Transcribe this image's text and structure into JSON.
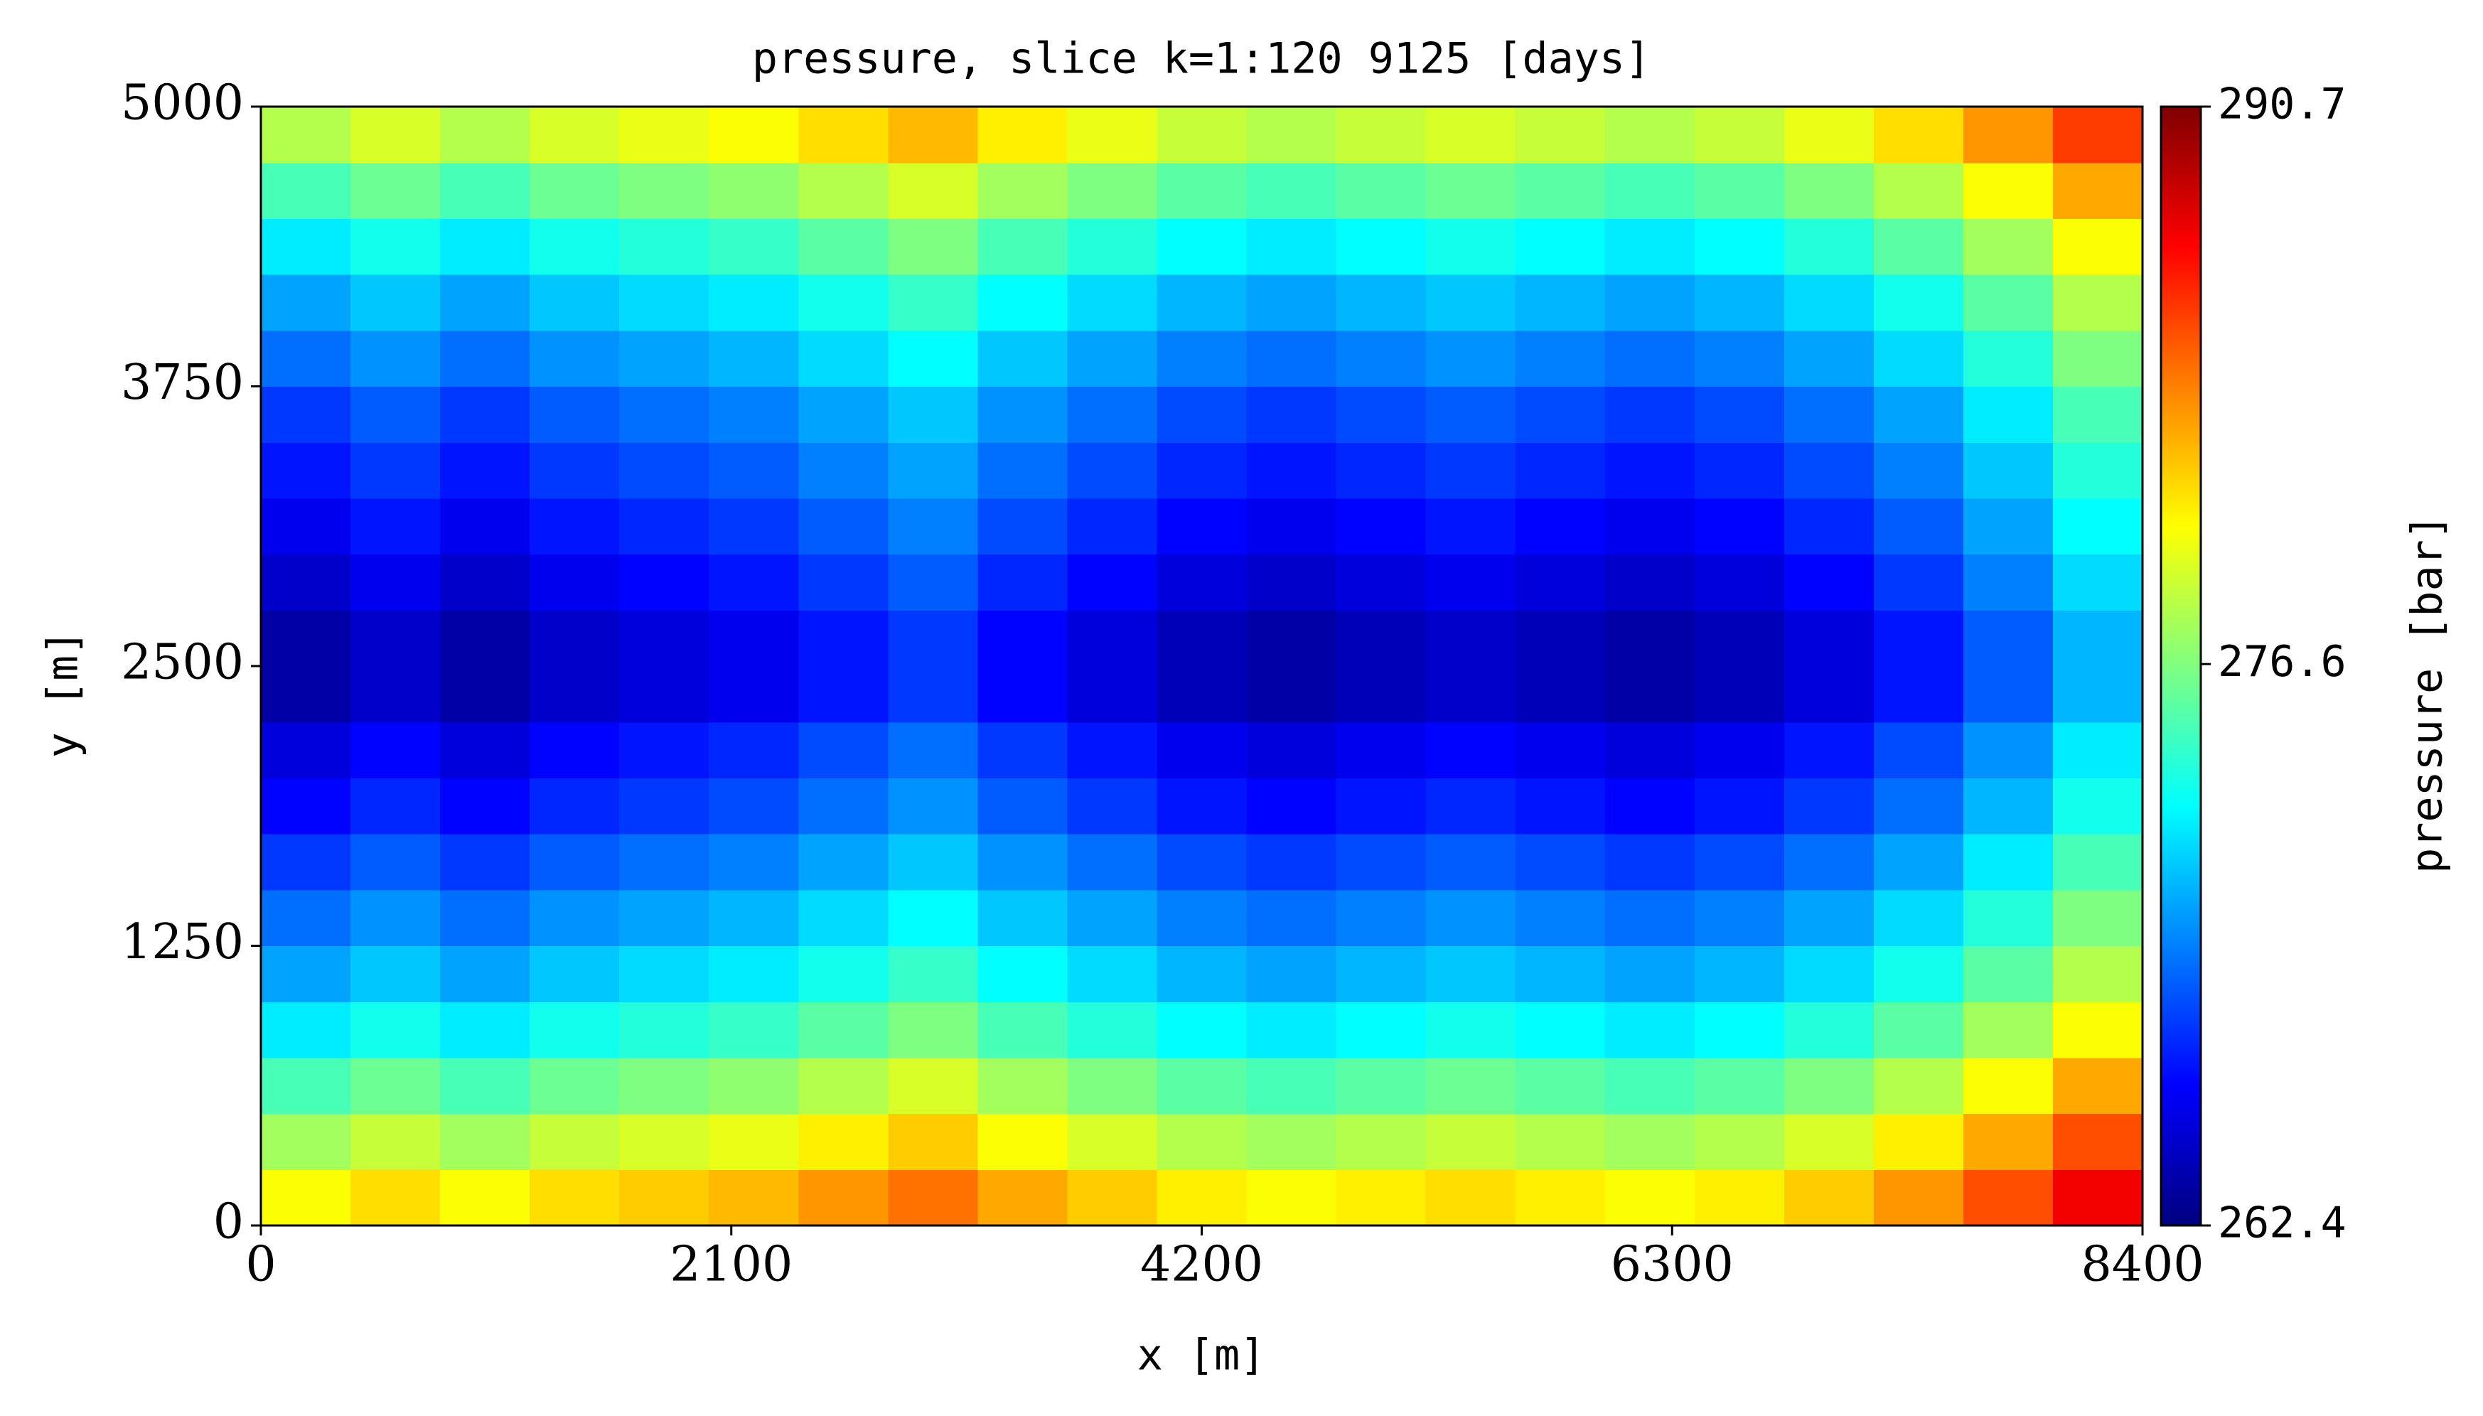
{
  "chart_data": {
    "type": "heatmap",
    "title": "pressure, slice k=1:120 9125 [days]",
    "xlabel": "x [m]",
    "ylabel": "y [m]",
    "xlim": [
      0,
      8400
    ],
    "ylim": [
      0,
      5000
    ],
    "xticks": [
      0,
      2100,
      4200,
      6300,
      8400
    ],
    "yticks": [
      0,
      1250,
      2500,
      3750,
      5000
    ],
    "colormap": "jet",
    "colorbar": {
      "label": "pressure [bar]",
      "clim": [
        262.4,
        290.7
      ],
      "ticks": [
        262.4,
        276.6,
        290.7
      ]
    },
    "z": [
      [
        280,
        281,
        280,
        281,
        281.5,
        282,
        283,
        284,
        282.5,
        281.5,
        280.5,
        280,
        280.5,
        281,
        280.5,
        280,
        280.5,
        281.5,
        283,
        285,
        287.5
      ],
      [
        277.5,
        278.5,
        277.5,
        278.5,
        279,
        279.5,
        280.5,
        281.5,
        280,
        279,
        278,
        277.5,
        278,
        278.5,
        278,
        277.5,
        278,
        279,
        280.5,
        282.5,
        285
      ],
      [
        275,
        276,
        275,
        276,
        276.5,
        277,
        278,
        279,
        277.5,
        276.5,
        275.5,
        275,
        275.5,
        276,
        275.5,
        275,
        275.5,
        276.5,
        278,
        280,
        282.5
      ],
      [
        272.5,
        273.5,
        272.5,
        273.5,
        274,
        274.5,
        275.5,
        276.5,
        275,
        274,
        273,
        272.5,
        273,
        273.5,
        273,
        272.5,
        273,
        274,
        275.5,
        277.5,
        280
      ],
      [
        270.5,
        271.5,
        270.5,
        271.5,
        272,
        272.5,
        273.5,
        274.5,
        273,
        272,
        271,
        270.5,
        271,
        271.5,
        271,
        270.5,
        271,
        272,
        273.5,
        275.5,
        278
      ],
      [
        269,
        270,
        269,
        270,
        270.5,
        271,
        272,
        273,
        271.5,
        270.5,
        269.5,
        269,
        269.5,
        270,
        269.5,
        269,
        269.5,
        270.5,
        272,
        274,
        276.5
      ],
      [
        267.5,
        268.5,
        267.5,
        268.5,
        269,
        269.5,
        270.5,
        271.5,
        270,
        269,
        268,
        267.5,
        268,
        268.5,
        268,
        267.5,
        268,
        269,
        270.5,
        272.5,
        275
      ],
      [
        266,
        267,
        266,
        267,
        267.5,
        268,
        269,
        270,
        268.5,
        267.5,
        266.5,
        266,
        266.5,
        267,
        266.5,
        266,
        266.5,
        267.5,
        269,
        271,
        273.5
      ],
      [
        265,
        266,
        265,
        266,
        266.5,
        267,
        268,
        269,
        267.5,
        266.5,
        265.5,
        265,
        265.5,
        266,
        265.5,
        265,
        265.5,
        266.5,
        268,
        270,
        272.5
      ],
      [
        263.5,
        264.5,
        263.5,
        264.5,
        265,
        265.5,
        266.5,
        267.5,
        266,
        265,
        264,
        263.5,
        264,
        264.5,
        264,
        263.5,
        264,
        265,
        266.5,
        268.5,
        271
      ],
      [
        263.5,
        264.5,
        263.5,
        264.5,
        265,
        265.5,
        266.5,
        267.5,
        266,
        265,
        264,
        263.5,
        264,
        264.5,
        264,
        263.5,
        264,
        265,
        266.5,
        268.5,
        271
      ],
      [
        264.5,
        265.5,
        264.5,
        265.5,
        266,
        266.5,
        267.5,
        268.5,
        267,
        266,
        265,
        264.5,
        265,
        265.5,
        265,
        264.5,
        265,
        266,
        267.5,
        269.5,
        272
      ],
      [
        265.5,
        266.5,
        265.5,
        266.5,
        267,
        267.5,
        268.5,
        269.5,
        268,
        267,
        266,
        265.5,
        266,
        266.5,
        266,
        265.5,
        266,
        267,
        268.5,
        270.5,
        273
      ],
      [
        266.5,
        267.5,
        266.5,
        267.5,
        268,
        268.5,
        269.5,
        270.5,
        269,
        268,
        267,
        266.5,
        267,
        267.5,
        267,
        266.5,
        267,
        268,
        269.5,
        271.5,
        274
      ],
      [
        267.5,
        268.5,
        267.5,
        268.5,
        269,
        269.5,
        270.5,
        271.5,
        270,
        269,
        268,
        267.5,
        268,
        268.5,
        268,
        267.5,
        268,
        269,
        270.5,
        272.5,
        275
      ],
      [
        269,
        270,
        269,
        270,
        270.5,
        271,
        272,
        273,
        271.5,
        270.5,
        269.5,
        269,
        269.5,
        270,
        269.5,
        269,
        269.5,
        270.5,
        272,
        274,
        276.5
      ],
      [
        270.5,
        271.5,
        270.5,
        271.5,
        272,
        272.5,
        273.5,
        274.5,
        273,
        272,
        271,
        270.5,
        271,
        271.5,
        271,
        270.5,
        271,
        272,
        273.5,
        275.5,
        278
      ],
      [
        272.5,
        273.5,
        272.5,
        273.5,
        274,
        274.5,
        275.5,
        276.5,
        275,
        274,
        273,
        272.5,
        273,
        273.5,
        273,
        272.5,
        273,
        274,
        275.5,
        277.5,
        280
      ],
      [
        275,
        276,
        275,
        276,
        276.5,
        277,
        278,
        279,
        277.5,
        276.5,
        275.5,
        275,
        275.5,
        276,
        275.5,
        275,
        275.5,
        276.5,
        278,
        280,
        282.5
      ],
      [
        278,
        279,
        278,
        279,
        279.5,
        280,
        281,
        282,
        280.5,
        279.5,
        278.5,
        278,
        278.5,
        279,
        278.5,
        278,
        278.5,
        279.5,
        281,
        283,
        285.5
      ]
    ]
  }
}
